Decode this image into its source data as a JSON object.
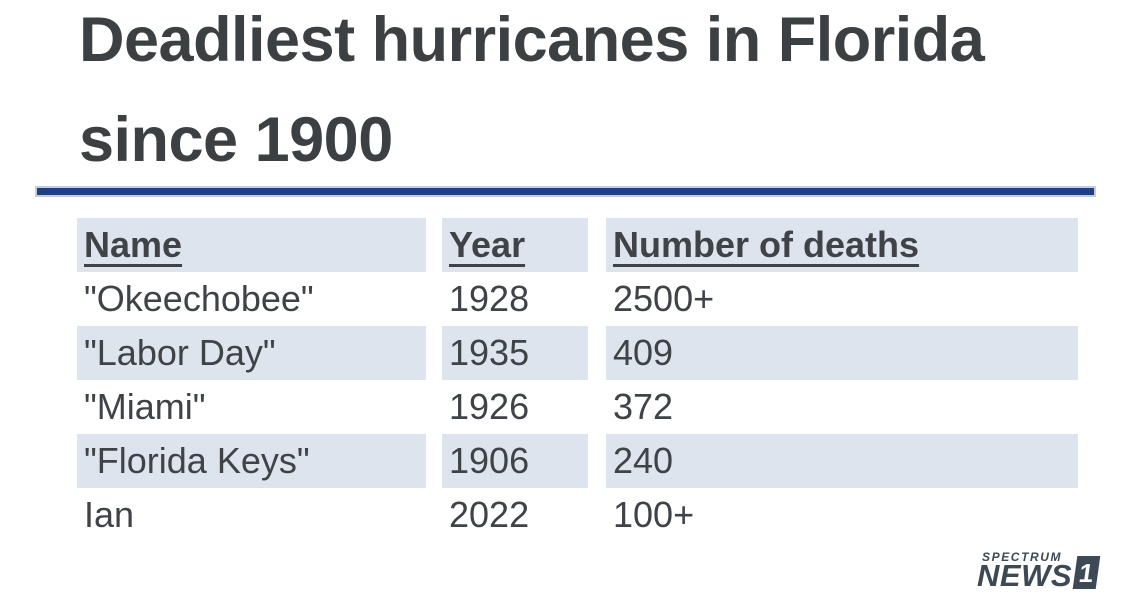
{
  "title": {
    "line1": "Deadliest hurricanes in Florida",
    "line2": "since 1900"
  },
  "chart_data": {
    "type": "table",
    "title": "Deadliest hurricanes in Florida since 1900",
    "columns": [
      "Name",
      "Year",
      "Number of deaths"
    ],
    "rows": [
      [
        "\"Okeechobee\"",
        "1928",
        "2500+"
      ],
      [
        "\"Labor Day\"",
        "1935",
        "409"
      ],
      [
        "\"Miami\"",
        "1926",
        "372"
      ],
      [
        "\"Florida Keys\"",
        "1906",
        "240"
      ],
      [
        "Ian",
        "2022",
        "100+"
      ]
    ],
    "layout_hints": {
      "striped_rows": true,
      "header_underlined": true,
      "shade_color": "#dee4ed"
    }
  },
  "logo": {
    "brand": "SPECTRUM",
    "network": "NEWS",
    "channel": "1"
  },
  "colors": {
    "accent_bar": "#21407f",
    "accent_bar_edge": "#c3cce1",
    "row_shade": "#dee4ed",
    "text": "#3f4347",
    "title_text": "#3c4043",
    "logo": "#3d4954"
  }
}
